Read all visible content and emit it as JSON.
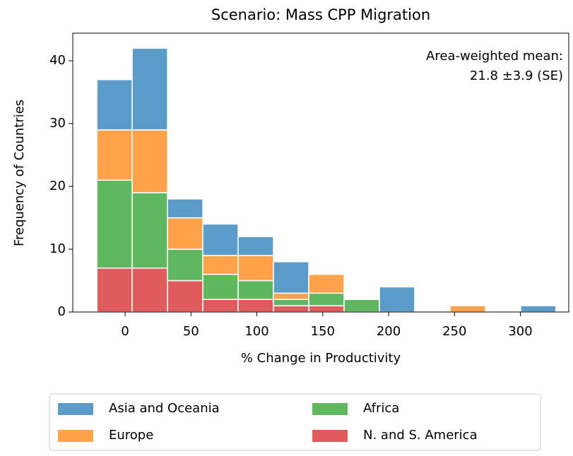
{
  "chart_data": {
    "type": "stacked_histogram",
    "title": "Scenario: Mass CPP Migration",
    "x_label": "% Change in Productivity",
    "y_label": "Frequency of Countries",
    "annotation": [
      "Area-weighted mean:",
      "21.8 ±3.9 (SE)"
    ],
    "bins": [
      -21.4,
      5.4,
      32.2,
      59.0,
      85.8,
      112.6,
      139.4,
      166.2,
      193.0,
      219.8,
      246.6,
      273.4,
      300.2,
      327.0
    ],
    "series": [
      {
        "name": "Asia and Oceania",
        "color": "#5b9bc9",
        "values": [
          8,
          13,
          3,
          5,
          3,
          5,
          0,
          0,
          4,
          0,
          0,
          0,
          1
        ]
      },
      {
        "name": "Europe",
        "color": "#ffa24a",
        "values": [
          8,
          10,
          5,
          3,
          4,
          1,
          3,
          0,
          0,
          0,
          1,
          0,
          0
        ]
      },
      {
        "name": "Africa",
        "color": "#5fb85f",
        "values": [
          14,
          12,
          5,
          4,
          3,
          1,
          2,
          2,
          0,
          0,
          0,
          0,
          0
        ]
      },
      {
        "name": "N. and S. America",
        "color": "#e05c5c",
        "values": [
          7,
          7,
          5,
          2,
          2,
          1,
          1,
          0,
          0,
          0,
          0,
          0,
          0
        ]
      }
    ],
    "xlim": [
      -39.7,
      336.7
    ],
    "xticks": [
      0,
      50,
      100,
      150,
      200,
      250,
      300
    ],
    "ylim": [
      0,
      44.4
    ],
    "yticks": [
      0,
      10,
      20,
      30,
      40
    ],
    "legend_position": "below"
  }
}
